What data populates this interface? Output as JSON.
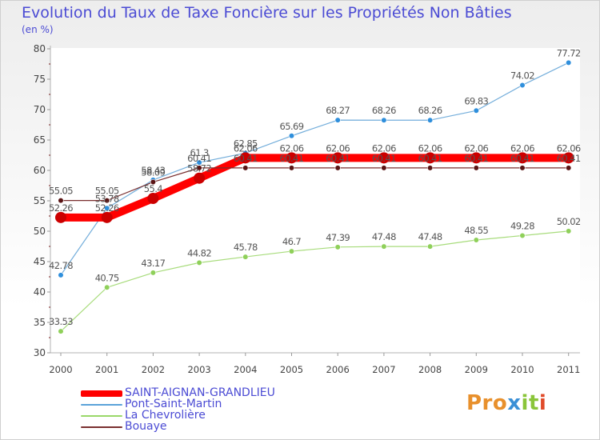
{
  "title": "Evolution du Taux de Taxe Foncière sur les Propriétés Non Bâties",
  "unit": "(en %)",
  "logo": "Proxiti",
  "chart_data": {
    "type": "line",
    "title": "Evolution du Taux de Taxe Foncière sur les Propriétés Non Bâties",
    "ylabel": "(en %)",
    "xlabel": "",
    "x": [
      "2000",
      "2001",
      "2002",
      "2003",
      "2004",
      "2005",
      "2006",
      "2007",
      "2008",
      "2009",
      "2010",
      "2011"
    ],
    "ylim": [
      30,
      80
    ],
    "yticks": [
      30,
      35,
      40,
      45,
      50,
      55,
      60,
      65,
      70,
      75,
      80
    ],
    "grid": false,
    "legend_position": "bottom-left",
    "series": [
      {
        "name": "SAINT-AIGNAN-GRANDLIEU",
        "color": "#ff0000",
        "values": [
          52.26,
          52.26,
          55.4,
          58.72,
          62.06,
          62.06,
          62.06,
          62.06,
          62.06,
          62.06,
          62.06,
          62.06
        ],
        "labels": [
          "52.26",
          "52.26",
          "55.4",
          "58.72",
          "62.06",
          "62.06",
          "62.06",
          "62.06",
          "62.06",
          "62.06",
          "62.06",
          "62.06"
        ]
      },
      {
        "name": "Pont-Saint-Martin",
        "color": "#5ba3d9",
        "values": [
          42.78,
          53.78,
          58.43,
          61.3,
          62.85,
          65.69,
          68.27,
          68.26,
          68.26,
          69.83,
          74.02,
          77.72
        ],
        "labels": [
          "42.78",
          "53.78",
          "58.43",
          "61.3",
          "62.85",
          "65.69",
          "68.27",
          "68.26",
          "68.26",
          "69.83",
          "74.02",
          "77.72"
        ]
      },
      {
        "name": "La Chevrolière",
        "color": "#99d86a",
        "values": [
          33.53,
          40.75,
          43.17,
          44.82,
          45.78,
          46.7,
          47.39,
          47.48,
          47.48,
          48.55,
          49.28,
          50.02
        ],
        "labels": [
          "33.53",
          "40.75",
          "43.17",
          "44.82",
          "45.78",
          "46.7",
          "47.39",
          "47.48",
          "47.48",
          "48.55",
          "49.28",
          "50.02"
        ]
      },
      {
        "name": "Bouaye",
        "color": "#7a2f2f",
        "values": [
          55.05,
          55.05,
          58.09,
          60.41,
          60.41,
          60.41,
          60.41,
          60.41,
          60.41,
          60.41,
          60.41,
          60.41
        ],
        "labels": [
          "55.05",
          "55.05",
          "58.09",
          "60.41",
          "60.41",
          "60.41",
          "60.41",
          "60.41",
          "60.41",
          "60.41",
          "60.41",
          "60.41"
        ]
      }
    ]
  }
}
